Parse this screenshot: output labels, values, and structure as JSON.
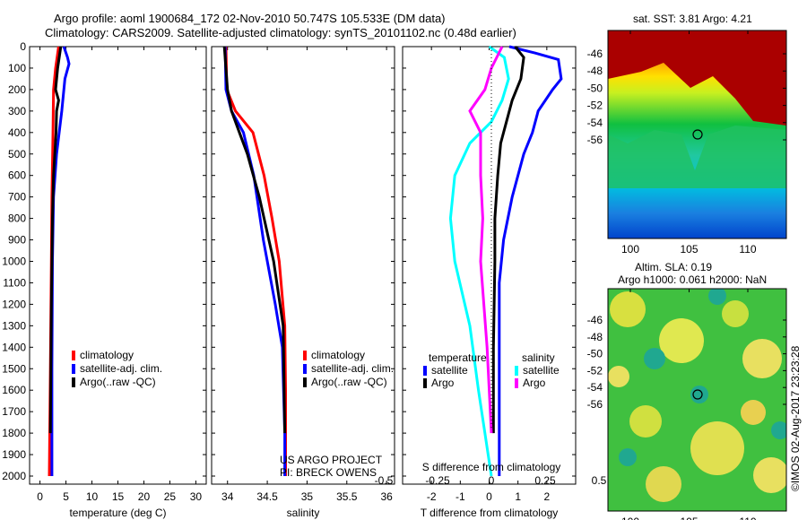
{
  "title": {
    "line1": "Argo profile: aoml 1900684_172 02-Nov-2010 50.747S 105.533E (DM data)",
    "line2": "Climatology: CARS2009. Satellite-adjusted climatology: synTS_20101102.nc (0.48d earlier)"
  },
  "colors": {
    "climatology": "#ff0000",
    "satellite": "#0000ff",
    "argo": "#000000",
    "sal_satellite": "#00ffff",
    "sal_argo": "#ff00ff"
  },
  "chart_data": [
    {
      "type": "line",
      "xlabel": "temperature (deg C)",
      "xlim": [
        -2,
        32
      ],
      "ylim": [
        0,
        2050
      ],
      "xticks": [
        0,
        5,
        10,
        15,
        20,
        25,
        30
      ],
      "yticks": [
        0,
        100,
        200,
        300,
        400,
        500,
        600,
        700,
        800,
        900,
        1000,
        1100,
        1200,
        1300,
        1400,
        1500,
        1600,
        1700,
        1800,
        1900,
        2000
      ],
      "legend": [
        "climatology",
        "satellite-adj. clim.",
        "Argo(..raw -QC)"
      ],
      "series": [
        {
          "name": "climatology",
          "p": [
            0,
            100,
            200,
            400,
            700,
            1000,
            1500,
            2000
          ],
          "v": [
            3.6,
            3.0,
            2.6,
            2.5,
            2.3,
            2.2,
            2.0,
            1.8
          ]
        },
        {
          "name": "satellite-adj. clim.",
          "p": [
            0,
            50,
            80,
            150,
            300,
            500,
            700,
            1000,
            1500,
            2000
          ],
          "v": [
            4.6,
            5.3,
            5.6,
            4.8,
            4.2,
            3.2,
            2.6,
            2.4,
            2.3,
            2.3
          ]
        },
        {
          "name": "Argo(..raw -QC)",
          "p": [
            0,
            100,
            200,
            250,
            300,
            400,
            600,
            800,
            1200,
            1800
          ],
          "v": [
            4.0,
            3.4,
            3.0,
            3.6,
            3.2,
            3.1,
            2.6,
            2.4,
            2.2,
            2.0
          ]
        }
      ]
    },
    {
      "type": "line",
      "xlabel": "salinity",
      "xlim": [
        33.8,
        36.1
      ],
      "ylim": [
        0,
        2050
      ],
      "xticks": [
        34,
        34.5,
        35,
        35.5,
        36
      ],
      "legend": [
        "climatology",
        "satellite-adj. clim.",
        "Argo(..raw -QC)"
      ],
      "note": [
        "US ARGO PROJECT",
        "PI: BRECK OWENS"
      ],
      "series": [
        {
          "name": "climatology",
          "p": [
            0,
            200,
            300,
            400,
            600,
            800,
            1000,
            1300,
            1600,
            2000
          ],
          "v": [
            33.98,
            33.99,
            34.1,
            34.32,
            34.46,
            34.56,
            34.65,
            34.72,
            34.73,
            34.73
          ]
        },
        {
          "name": "satellite-adj. clim.",
          "p": [
            0,
            200,
            300,
            400,
            600,
            900,
            1200,
            1400,
            1800,
            2000
          ],
          "v": [
            33.97,
            33.98,
            34.05,
            34.2,
            34.33,
            34.45,
            34.6,
            34.69,
            34.72,
            34.72
          ]
        },
        {
          "name": "Argo(..raw -QC)",
          "p": [
            0,
            200,
            300,
            400,
            500,
            700,
            1000,
            1300,
            1800
          ],
          "v": [
            33.96,
            34.0,
            34.05,
            34.15,
            34.25,
            34.4,
            34.58,
            34.7,
            34.72
          ]
        }
      ]
    },
    {
      "type": "line",
      "xlabel": "T difference from climatology",
      "x2label": "S difference from climatology",
      "xlim": [
        -3,
        3
      ],
      "x2lim": [
        -0.8,
        0.8
      ],
      "ylim": [
        0,
        2050
      ],
      "xticks": [
        -2,
        -1,
        0,
        1,
        2
      ],
      "x2ticks": [
        -0.5,
        -0.25,
        0,
        0.25,
        0.5
      ],
      "legend_titles": [
        "temperature",
        "salinity"
      ],
      "legend": [
        "satellite",
        "Argo",
        "satellite",
        "Argo"
      ],
      "series": [
        {
          "name": "T satellite",
          "axis": "T",
          "p": [
            0,
            30,
            60,
            150,
            200,
            300,
            400,
            500,
            700,
            900,
            1100,
            1500,
            2000
          ],
          "v": [
            0.7,
            1.6,
            2.4,
            2.5,
            2.2,
            1.7,
            1.5,
            1.2,
            0.8,
            0.5,
            0.35,
            0.35,
            0.35
          ]
        },
        {
          "name": "T Argo",
          "axis": "T",
          "p": [
            0,
            50,
            150,
            250,
            350,
            450,
            600,
            800,
            1000,
            1400,
            1800
          ],
          "v": [
            0.9,
            1.2,
            1.1,
            0.8,
            0.6,
            0.4,
            0.3,
            0.2,
            0.2,
            0.15,
            0.15
          ]
        },
        {
          "name": "S satellite",
          "axis": "S",
          "p": [
            0,
            50,
            150,
            250,
            350,
            450,
            600,
            800,
            1000,
            1300,
            1600,
            2000
          ],
          "v": [
            -0.01,
            0.06,
            0.08,
            0.05,
            0.0,
            -0.1,
            -0.17,
            -0.19,
            -0.17,
            -0.1,
            -0.06,
            0.0
          ]
        },
        {
          "name": "S Argo",
          "axis": "S",
          "p": [
            0,
            100,
            200,
            300,
            400,
            600,
            800,
            1000,
            1400,
            1800
          ],
          "v": [
            0.05,
            0.0,
            -0.03,
            -0.1,
            -0.05,
            -0.05,
            -0.04,
            -0.05,
            -0.02,
            0.0
          ]
        }
      ]
    }
  ],
  "maps": {
    "sst": {
      "title": "sat. SST: 3.81  Argo: 4.21",
      "xticks": [
        "100",
        "105",
        "110"
      ],
      "yticks": [
        "-46",
        "-48",
        "-50",
        "-52",
        "-54",
        "-56"
      ]
    },
    "sla": {
      "title1": "Altim. SLA: 0.19",
      "title2": "Argo h1000: 0.061  h2000: NaN",
      "xticks": [
        "100",
        "105",
        "110"
      ],
      "yticks": [
        "-46",
        "-48",
        "-50",
        "-52",
        "-54",
        "-56"
      ]
    }
  },
  "stamp": "©IMOS 02-Aug-2017 23:23:28"
}
